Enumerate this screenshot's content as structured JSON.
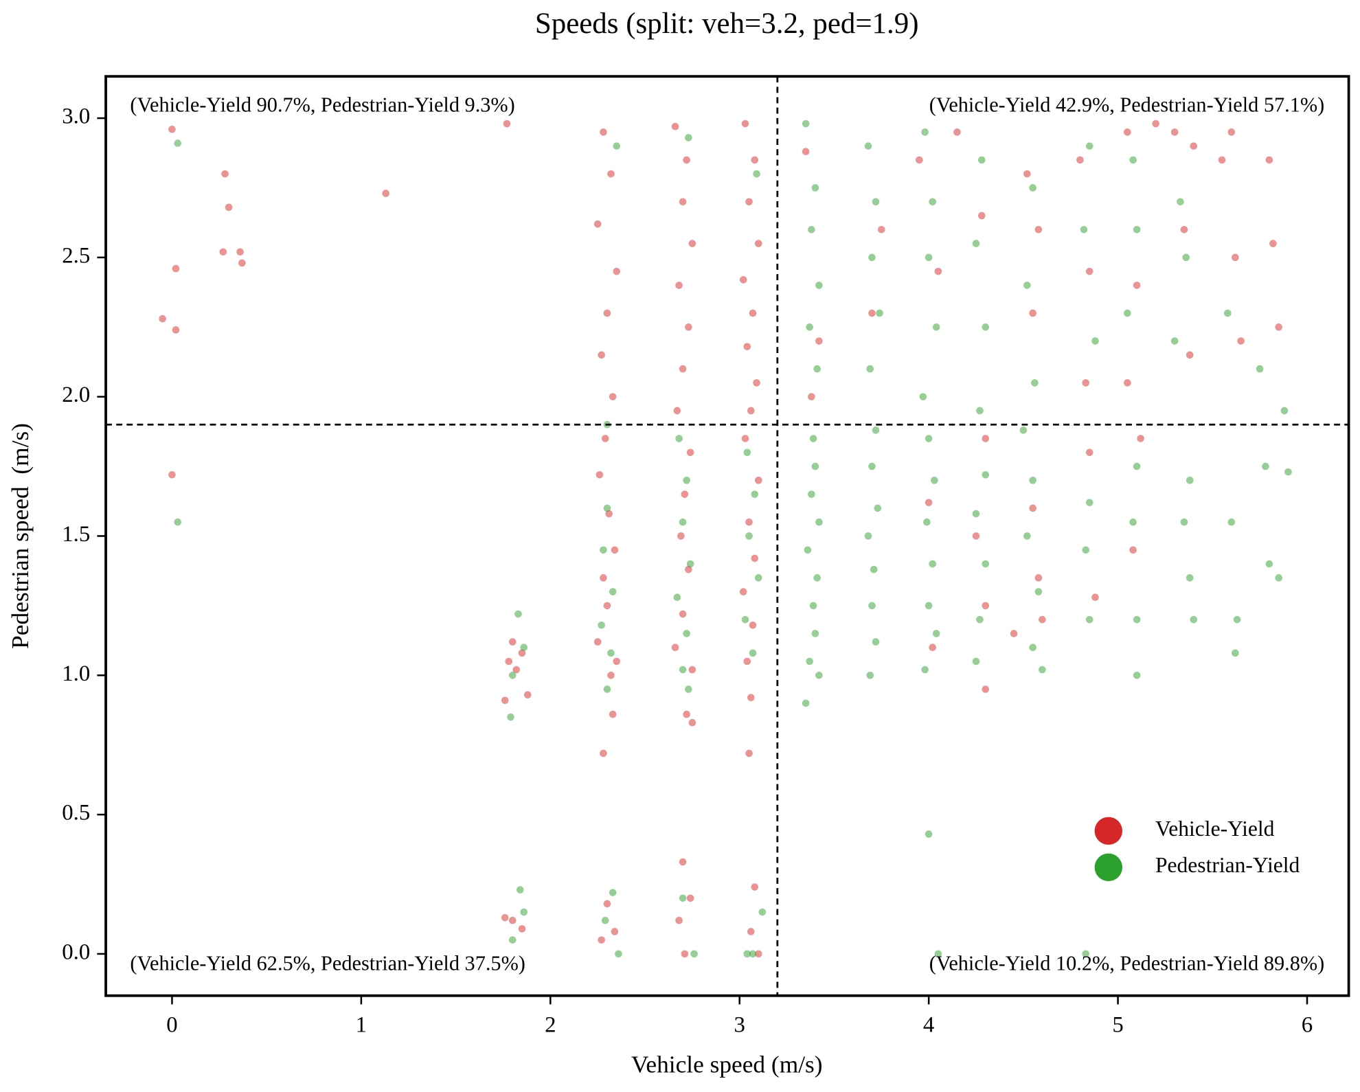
{
  "chart_data": {
    "type": "scatter",
    "title": "Speeds (split: veh=3.2, ped=1.9)",
    "xlabel": "Vehicle speed (m/s)",
    "ylabel": "Pedestrian speed  (m/s)",
    "xlim": [
      -0.35,
      6.22
    ],
    "ylim": [
      -0.15,
      3.15
    ],
    "xticks": [
      0,
      1,
      2,
      3,
      4,
      5,
      6
    ],
    "yticks": [
      {
        "value": 0,
        "label": "0.0"
      },
      0.5,
      {
        "value": 1,
        "label": "1.0"
      },
      1.5,
      {
        "value": 2,
        "label": "2.0"
      },
      2.5,
      {
        "value": 3,
        "label": "3.0"
      }
    ],
    "split_lines": {
      "x": 3.2,
      "y": 1.9
    },
    "annotations": [
      "(Vehicle-Yield 90.7%, Pedestrian-Yield 9.3%)",
      "(Vehicle-Yield 42.9%, Pedestrian-Yield 57.1%)",
      "(Vehicle-Yield 62.5%, Pedestrian-Yield 37.5%)",
      "(Vehicle-Yield 10.2%, Pedestrian-Yield 89.8%)"
    ],
    "legend": "lower right",
    "series": [
      {
        "name": "Vehicle-Yield",
        "color": "#d62728",
        "x": [
          0.0,
          -0.05,
          0.02,
          0.02,
          0.0,
          0.28,
          0.3,
          0.27,
          0.36,
          0.37,
          1.13,
          1.77,
          1.78,
          1.82,
          1.85,
          1.8,
          1.76,
          1.88,
          1.8,
          1.85,
          1.76,
          2.28,
          2.32,
          2.25,
          2.35,
          2.3,
          2.27,
          2.33,
          2.29,
          2.26,
          2.31,
          2.34,
          2.28,
          2.3,
          2.25,
          2.35,
          2.32,
          2.28,
          2.33,
          2.3,
          2.34,
          2.27,
          2.66,
          2.72,
          2.7,
          2.75,
          2.68,
          2.73,
          2.7,
          2.67,
          2.74,
          2.71,
          2.69,
          2.73,
          2.7,
          2.66,
          2.75,
          2.72,
          2.75,
          2.7,
          2.68,
          2.74,
          2.71,
          3.03,
          3.08,
          3.05,
          3.1,
          3.02,
          3.07,
          3.04,
          3.09,
          3.06,
          3.03,
          3.1,
          3.05,
          3.08,
          3.02,
          3.07,
          3.04,
          3.06,
          3.05,
          3.06,
          3.08,
          3.1,
          3.35,
          3.42,
          3.38,
          3.7,
          3.75,
          3.95,
          4.05,
          4.0,
          4.02,
          4.15,
          4.28,
          4.3,
          4.25,
          4.3,
          4.3,
          4.45,
          4.52,
          4.55,
          4.58,
          4.55,
          4.58,
          4.6,
          4.8,
          4.85,
          4.83,
          4.85,
          4.88,
          5.05,
          5.1,
          5.05,
          5.12,
          5.08,
          5.3,
          5.35,
          5.38,
          5.55,
          5.62,
          5.65,
          5.6,
          5.8,
          5.82,
          5.85,
          5.4,
          5.2
        ],
        "values": [
          2.96,
          2.28,
          2.46,
          2.24,
          1.72,
          2.8,
          2.68,
          2.52,
          2.52,
          2.48,
          2.73,
          2.98,
          1.05,
          1.02,
          1.08,
          1.12,
          0.91,
          0.93,
          0.12,
          0.09,
          0.13,
          2.95,
          2.8,
          2.62,
          2.45,
          2.3,
          2.15,
          2.0,
          1.85,
          1.72,
          1.58,
          1.45,
          1.35,
          1.25,
          1.12,
          1.05,
          1.0,
          0.72,
          0.86,
          0.18,
          0.08,
          0.05,
          2.97,
          2.85,
          2.7,
          2.55,
          2.4,
          2.25,
          2.1,
          1.95,
          1.8,
          1.65,
          1.5,
          1.38,
          1.22,
          1.1,
          1.02,
          0.86,
          0.83,
          0.33,
          0.12,
          0.2,
          0.0,
          2.98,
          2.85,
          2.7,
          2.55,
          2.42,
          2.3,
          2.18,
          2.05,
          1.95,
          1.85,
          1.7,
          1.55,
          1.42,
          1.3,
          1.18,
          1.05,
          0.92,
          0.72,
          0.08,
          0.24,
          0.0,
          2.88,
          2.2,
          2.0,
          2.3,
          2.6,
          2.85,
          2.45,
          1.62,
          1.1,
          2.95,
          2.65,
          1.85,
          1.5,
          1.25,
          0.95,
          1.15,
          2.8,
          2.3,
          2.6,
          1.6,
          1.35,
          1.2,
          2.85,
          2.45,
          2.05,
          1.8,
          1.28,
          2.95,
          2.4,
          2.05,
          1.85,
          1.45,
          2.95,
          2.6,
          2.15,
          2.85,
          2.5,
          2.2,
          2.95,
          2.85,
          2.55,
          2.25,
          2.9,
          2.98
        ]
      },
      {
        "name": "Pedestrian-Yield",
        "color": "#2ca02c",
        "x": [
          0.03,
          0.03,
          1.83,
          1.86,
          1.8,
          1.79,
          1.84,
          1.8,
          1.86,
          2.3,
          2.28,
          2.33,
          2.27,
          2.32,
          2.3,
          2.35,
          2.3,
          2.33,
          2.29,
          2.36,
          2.68,
          2.72,
          2.7,
          2.74,
          2.67,
          2.72,
          2.7,
          2.73,
          2.7,
          2.76,
          2.73,
          3.04,
          3.08,
          3.05,
          3.1,
          3.03,
          3.07,
          3.09,
          3.12,
          3.07,
          3.04,
          3.35,
          3.4,
          3.38,
          3.42,
          3.37,
          3.41,
          3.39,
          3.4,
          3.38,
          3.42,
          3.36,
          3.41,
          3.39,
          3.4,
          3.37,
          3.42,
          3.35,
          3.68,
          3.72,
          3.7,
          3.74,
          3.69,
          3.72,
          3.7,
          3.73,
          3.68,
          3.71,
          3.7,
          3.72,
          3.69,
          3.98,
          4.02,
          4.0,
          4.04,
          3.97,
          4.0,
          4.03,
          3.99,
          4.02,
          4.0,
          4.04,
          3.98,
          4.0,
          4.05,
          4.28,
          4.25,
          4.3,
          4.27,
          4.3,
          4.25,
          4.3,
          4.27,
          4.25,
          4.55,
          4.52,
          4.56,
          4.5,
          4.55,
          4.52,
          4.58,
          4.55,
          4.6,
          4.85,
          4.82,
          4.88,
          4.85,
          4.83,
          4.85,
          4.83,
          5.08,
          5.1,
          5.05,
          5.1,
          5.08,
          5.1,
          5.1,
          5.33,
          5.36,
          5.3,
          5.38,
          5.35,
          5.38,
          5.4,
          5.58,
          5.6,
          5.63,
          5.62,
          5.75,
          5.78,
          5.8,
          5.85,
          5.9,
          5.88
        ],
        "values": [
          2.91,
          1.55,
          1.22,
          1.1,
          1.0,
          0.85,
          0.23,
          0.05,
          0.15,
          1.6,
          1.45,
          1.3,
          1.18,
          1.08,
          0.95,
          2.9,
          1.9,
          0.22,
          0.12,
          0.0,
          1.85,
          1.7,
          1.55,
          1.4,
          1.28,
          1.15,
          1.02,
          0.95,
          0.2,
          0.0,
          2.93,
          1.8,
          1.65,
          1.5,
          1.35,
          1.2,
          1.08,
          2.8,
          0.15,
          0.0,
          0.0,
          2.98,
          2.75,
          2.6,
          2.4,
          2.25,
          2.1,
          1.85,
          1.75,
          1.65,
          1.55,
          1.45,
          1.35,
          1.25,
          1.15,
          1.05,
          1.0,
          0.9,
          2.9,
          2.7,
          2.5,
          2.3,
          2.1,
          1.88,
          1.75,
          1.6,
          1.5,
          1.38,
          1.25,
          1.12,
          1.0,
          2.95,
          2.7,
          2.5,
          2.25,
          2.0,
          1.85,
          1.7,
          1.55,
          1.4,
          1.25,
          1.15,
          1.02,
          0.43,
          0.0,
          2.85,
          2.55,
          2.25,
          1.95,
          1.72,
          1.58,
          1.4,
          1.2,
          1.05,
          2.75,
          2.4,
          2.05,
          1.88,
          1.7,
          1.5,
          1.3,
          1.1,
          1.02,
          2.9,
          2.6,
          2.2,
          1.62,
          1.45,
          1.2,
          0.0,
          2.85,
          2.6,
          2.3,
          1.75,
          1.55,
          1.2,
          1.0,
          2.7,
          2.5,
          2.2,
          1.7,
          1.55,
          1.35,
          1.2,
          2.3,
          1.55,
          1.2,
          1.08,
          2.1,
          1.75,
          1.4,
          1.35,
          1.73,
          1.95
        ]
      }
    ]
  }
}
